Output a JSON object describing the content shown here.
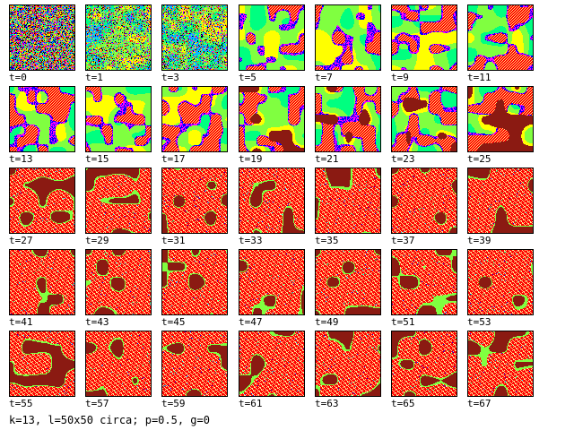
{
  "frames": [
    {
      "label": "t=0"
    },
    {
      "label": "t=1"
    },
    {
      "label": "t=3"
    },
    {
      "label": "t=5"
    },
    {
      "label": "t=7"
    },
    {
      "label": "t=9"
    },
    {
      "label": "t=11"
    },
    {
      "label": "t=13"
    },
    {
      "label": "t=15"
    },
    {
      "label": "t=17"
    },
    {
      "label": "t=19"
    },
    {
      "label": "t=21"
    },
    {
      "label": "t=23"
    },
    {
      "label": "t=25"
    },
    {
      "label": "t=27"
    },
    {
      "label": "t=29"
    },
    {
      "label": "t=31"
    },
    {
      "label": "t=33"
    },
    {
      "label": "t=35"
    },
    {
      "label": "t=37"
    },
    {
      "label": "t=39"
    },
    {
      "label": "t=41"
    },
    {
      "label": "t=43"
    },
    {
      "label": "t=45"
    },
    {
      "label": "t=47"
    },
    {
      "label": "t=49"
    },
    {
      "label": "t=51"
    },
    {
      "label": "t=53"
    },
    {
      "label": "t=55"
    },
    {
      "label": "t=57"
    },
    {
      "label": "t=59"
    },
    {
      "label": "t=61"
    },
    {
      "label": "t=63"
    },
    {
      "label": "t=65"
    },
    {
      "label": "t=67"
    }
  ],
  "caption": "k=13, l=50x50 circa; p=0.5, g=0",
  "colors": {
    "background": "#ffffff",
    "frame_border": "#000000",
    "palette": [
      "#000000",
      "#ff00ff",
      "#0000ff",
      "#00c0ff",
      "#00ff80",
      "#80ff40",
      "#ffff00",
      "#ff8000",
      "#ff0000",
      "#8b1a12"
    ]
  }
}
